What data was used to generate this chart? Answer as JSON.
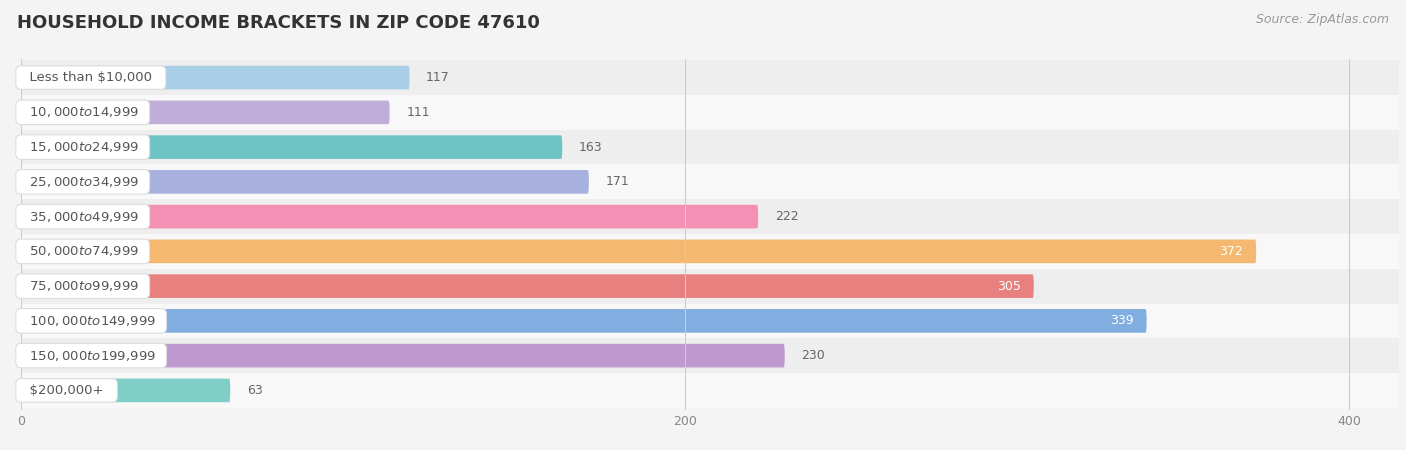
{
  "title": "HOUSEHOLD INCOME BRACKETS IN ZIP CODE 47610",
  "source": "Source: ZipAtlas.com",
  "categories": [
    "Less than $10,000",
    "$10,000 to $14,999",
    "$15,000 to $24,999",
    "$25,000 to $34,999",
    "$35,000 to $49,999",
    "$50,000 to $74,999",
    "$75,000 to $99,999",
    "$100,000 to $149,999",
    "$150,000 to $199,999",
    "$200,000+"
  ],
  "values": [
    117,
    111,
    163,
    171,
    222,
    372,
    305,
    339,
    230,
    63
  ],
  "bar_colors": [
    "#a8cfe6",
    "#c0aed8",
    "#6ec4c4",
    "#a8b0e0",
    "#f490b4",
    "#f5b870",
    "#e88080",
    "#80aee0",
    "#c098d0",
    "#80cec8"
  ],
  "dot_colors": [
    "#6ab0d8",
    "#9878b8",
    "#40aaaa",
    "#7880c8",
    "#e84888",
    "#e89030",
    "#d85050",
    "#4080c8",
    "#9858a8",
    "#40b0a0"
  ],
  "row_colors": [
    "#eeeeee",
    "#f8f8f8"
  ],
  "label_color": "#555555",
  "value_color_outside": "#666666",
  "value_color_inside": "#ffffff",
  "inside_threshold": 280,
  "xlim_min": 0,
  "xlim_max": 415,
  "xticks": [
    0,
    200,
    400
  ],
  "title_fontsize": 13,
  "label_fontsize": 9.5,
  "value_fontsize": 9,
  "source_fontsize": 9,
  "bg_color": "#f4f4f4",
  "grid_color": "#cccccc"
}
